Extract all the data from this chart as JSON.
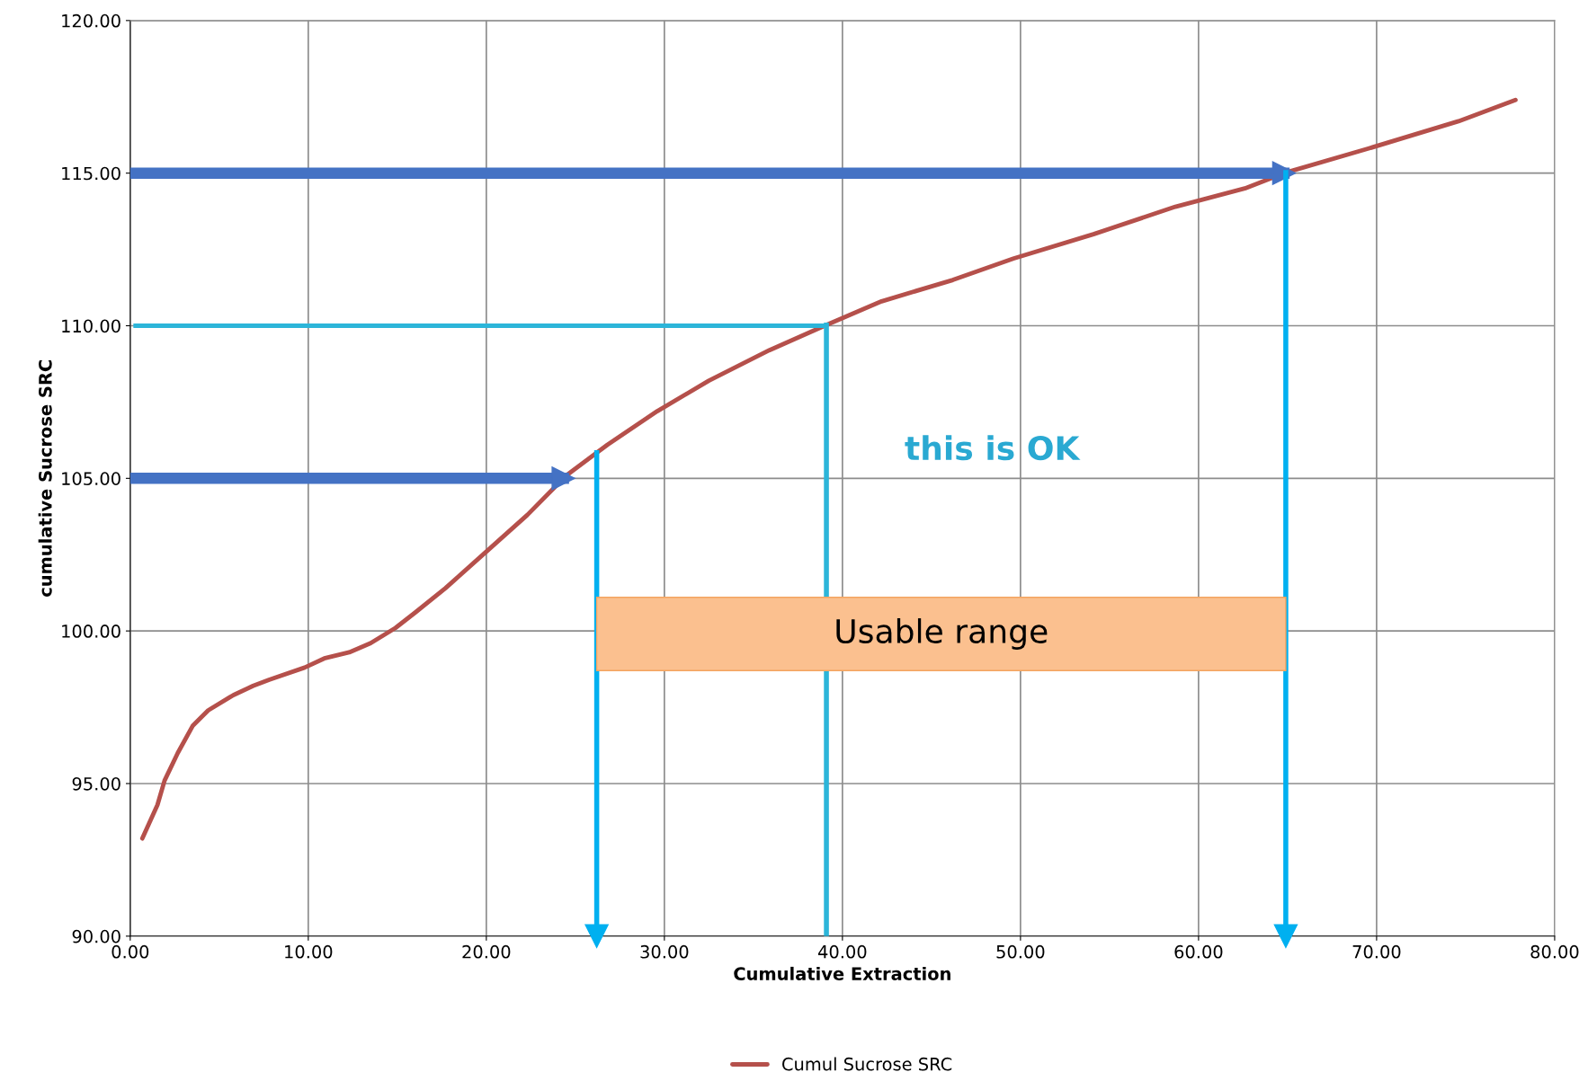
{
  "chart_data": {
    "type": "line",
    "xlabel": "Cumulative Extraction",
    "ylabel": "cumulative Sucrose SRC",
    "x": [
      0.68,
      1.53,
      1.93,
      2.67,
      3.52,
      4.38,
      5.8,
      6.9,
      7.8,
      9.8,
      10.9,
      12.3,
      13.5,
      14.9,
      16.0,
      17.7,
      20.0,
      22.3,
      24.5,
      26.8,
      29.6,
      32.5,
      35.9,
      39.0,
      42.2,
      46.2,
      49.6,
      54.1,
      58.7,
      62.6,
      64.8,
      69.5,
      74.6,
      77.8
    ],
    "series": [
      {
        "name": "Cumul Sucrose SRC",
        "color": "#b5504b",
        "values": [
          93.2,
          94.3,
          95.1,
          96.0,
          96.9,
          97.4,
          97.9,
          98.2,
          98.4,
          98.8,
          99.1,
          99.3,
          99.6,
          100.1,
          100.6,
          101.4,
          102.6,
          103.8,
          105.1,
          106.1,
          107.2,
          108.2,
          109.2,
          110.0,
          110.8,
          111.5,
          112.2,
          113.0,
          113.9,
          114.5,
          115.0,
          115.8,
          116.7,
          117.4
        ]
      }
    ],
    "xlim": [
      0,
      80
    ],
    "xticks": [
      {
        "value": 0,
        "label": "0.00"
      },
      {
        "value": 10,
        "label": "10.00"
      },
      {
        "value": 20,
        "label": "20.00"
      },
      {
        "value": 30,
        "label": "30.00"
      },
      {
        "value": 40,
        "label": "40.00"
      },
      {
        "value": 50,
        "label": "50.00"
      },
      {
        "value": 60,
        "label": "60.00"
      },
      {
        "value": 70,
        "label": "70.00"
      },
      {
        "value": 80,
        "label": "80.00"
      }
    ],
    "ylim": [
      90,
      120
    ],
    "yticks": [
      {
        "value": 90,
        "label": "90.00"
      },
      {
        "value": 95,
        "label": "95.00"
      },
      {
        "value": 100,
        "label": "100.00"
      },
      {
        "value": 105,
        "label": "105.00"
      },
      {
        "value": 110,
        "label": "110.00"
      },
      {
        "value": 115,
        "label": "115.00"
      },
      {
        "value": 120,
        "label": "120.00"
      }
    ],
    "ref_lines": [
      {
        "axis": "y",
        "value": 115,
        "color": "#4472c4"
      },
      {
        "axis": "y",
        "value": 105,
        "color": "#4472c4"
      },
      {
        "axis": "y",
        "value": 110,
        "color": "#2cb5d9"
      },
      {
        "axis": "x",
        "value": 26.2,
        "color": "#00b0f0"
      },
      {
        "axis": "x",
        "value": 39.1,
        "color": "#2cb5d9"
      },
      {
        "axis": "x",
        "value": 64.9,
        "color": "#00b0f0"
      }
    ],
    "bands": [
      {
        "axis": "x",
        "from": 26.2,
        "to": 64.9,
        "label": "Usable range",
        "color": "#fbc08f"
      }
    ],
    "annotations": [
      "this is OK"
    ],
    "grid": true,
    "legend": "bottom",
    "marker": "none",
    "line_style": "solid"
  }
}
